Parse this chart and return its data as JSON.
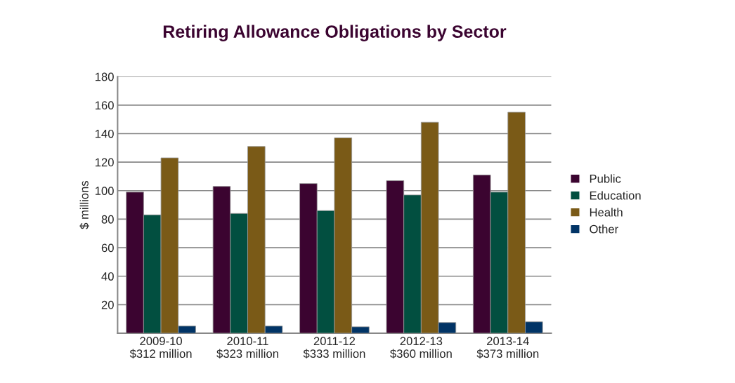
{
  "chart_data": {
    "type": "bar",
    "title": "Retiring Allowance Obligations by Sector",
    "ylabel": "$ millions",
    "categories": [
      "2009-10\n$312 million",
      "2010-11\n$323 million",
      "2011-12\n$333 million",
      "2012-13\n$360 million",
      "2013-14\n$373 million"
    ],
    "series": [
      {
        "name": "Public",
        "color": "#3b0430",
        "values": [
          99,
          103,
          105,
          107,
          111
        ]
      },
      {
        "name": "Education",
        "color": "#024f40",
        "values": [
          83,
          84,
          86,
          97,
          99
        ]
      },
      {
        "name": "Health",
        "color": "#7a5a17",
        "values": [
          123,
          131,
          137,
          148,
          155
        ]
      },
      {
        "name": "Other",
        "color": "#013466",
        "values": [
          5,
          5,
          4.5,
          7.5,
          8
        ]
      }
    ],
    "ylim": [
      0,
      180
    ],
    "yticks": [
      20,
      40,
      60,
      80,
      100,
      120,
      140,
      160,
      180
    ],
    "grid": "y",
    "legend": "right"
  }
}
